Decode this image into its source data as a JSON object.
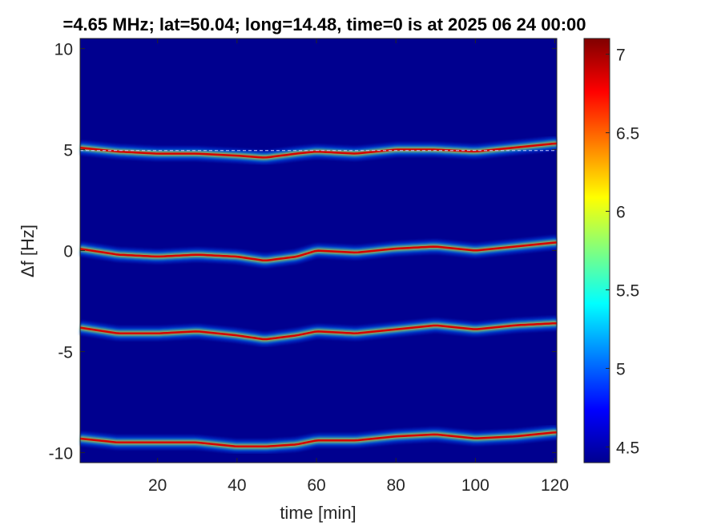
{
  "chart_data": {
    "type": "heatmap",
    "title": "=4.65 MHz;  lat=50.04; long=14.48, time=0 is at 2025 06 24 00:00",
    "xlabel": "time [min]",
    "ylabel": "Δf [Hz]",
    "xlim": [
      0.5,
      120.5
    ],
    "ylim": [
      -10.5,
      10.5
    ],
    "xticks": [
      20,
      40,
      60,
      80,
      100,
      120
    ],
    "yticks": [
      10,
      5,
      0,
      -5,
      -10
    ],
    "colorbar": {
      "clim": [
        4.4,
        7.1
      ],
      "ticks": [
        4.5,
        5,
        5.5,
        6,
        6.5,
        7
      ],
      "colormap": "jet"
    },
    "grid": false,
    "background_color": "#00008f",
    "reference_line": {
      "y": 4.95,
      "style": "dashed",
      "color": "#c8c8ff"
    },
    "series": [
      {
        "x": [
          0,
          10,
          20,
          30,
          40,
          47,
          55,
          60,
          70,
          80,
          90,
          100,
          110,
          120
        ],
        "y": [
          5.1,
          4.9,
          4.8,
          4.8,
          4.7,
          4.6,
          4.8,
          4.9,
          4.8,
          5.0,
          5.0,
          4.9,
          5.1,
          5.3
        ]
      },
      {
        "x": [
          0,
          10,
          20,
          30,
          40,
          47,
          55,
          60,
          70,
          80,
          90,
          100,
          110,
          120
        ],
        "y": [
          0.1,
          -0.2,
          -0.3,
          -0.2,
          -0.3,
          -0.5,
          -0.3,
          0.0,
          -0.1,
          0.1,
          0.2,
          0.0,
          0.2,
          0.4
        ]
      },
      {
        "x": [
          0,
          10,
          20,
          30,
          40,
          47,
          55,
          60,
          70,
          80,
          90,
          100,
          110,
          120
        ],
        "y": [
          -3.8,
          -4.1,
          -4.1,
          -4.0,
          -4.2,
          -4.4,
          -4.2,
          -4.0,
          -4.1,
          -3.9,
          -3.7,
          -3.9,
          -3.7,
          -3.6
        ]
      },
      {
        "x": [
          0,
          10,
          20,
          30,
          40,
          47,
          55,
          60,
          70,
          80,
          90,
          100,
          110,
          120
        ],
        "y": [
          -9.3,
          -9.5,
          -9.5,
          -9.5,
          -9.7,
          -9.7,
          -9.6,
          -9.4,
          -9.4,
          -9.2,
          -9.1,
          -9.3,
          -9.2,
          -9.0
        ]
      }
    ]
  }
}
